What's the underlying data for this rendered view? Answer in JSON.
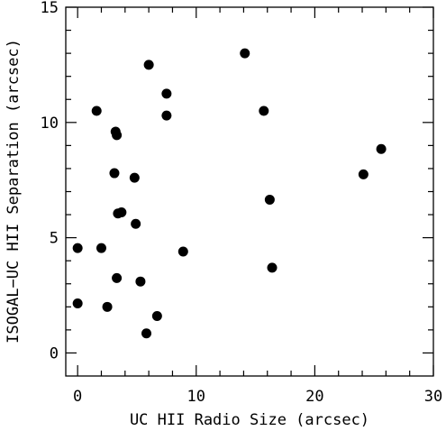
{
  "chart_data": {
    "type": "scatter",
    "title": "",
    "xlabel": "UC HII Radio Size (arcsec)",
    "ylabel": "ISOGAL−UC HII Separation (arcsec)",
    "xlim": [
      -1,
      30
    ],
    "ylim": [
      -1,
      15
    ],
    "xticks": [
      0,
      10,
      20,
      30
    ],
    "yticks": [
      0,
      5,
      10,
      15
    ],
    "grid": false,
    "legend": "none",
    "marker_color": "#000000",
    "series": [
      {
        "points": [
          [
            0.0,
            2.15
          ],
          [
            0.0,
            4.55
          ],
          [
            1.6,
            10.5
          ],
          [
            2.0,
            4.55
          ],
          [
            2.5,
            2.0
          ],
          [
            3.1,
            7.8
          ],
          [
            3.2,
            9.6
          ],
          [
            3.3,
            9.45
          ],
          [
            3.3,
            3.25
          ],
          [
            3.4,
            6.05
          ],
          [
            3.7,
            6.1
          ],
          [
            4.8,
            7.6
          ],
          [
            4.9,
            5.6
          ],
          [
            5.3,
            3.1
          ],
          [
            5.8,
            0.85
          ],
          [
            6.0,
            12.5
          ],
          [
            6.7,
            1.6
          ],
          [
            7.5,
            11.25
          ],
          [
            7.5,
            10.3
          ],
          [
            8.9,
            4.4
          ],
          [
            14.1,
            13.0
          ],
          [
            15.7,
            10.5
          ],
          [
            16.2,
            6.65
          ],
          [
            16.4,
            3.7
          ],
          [
            24.1,
            7.75
          ],
          [
            25.6,
            8.85
          ]
        ]
      }
    ]
  }
}
